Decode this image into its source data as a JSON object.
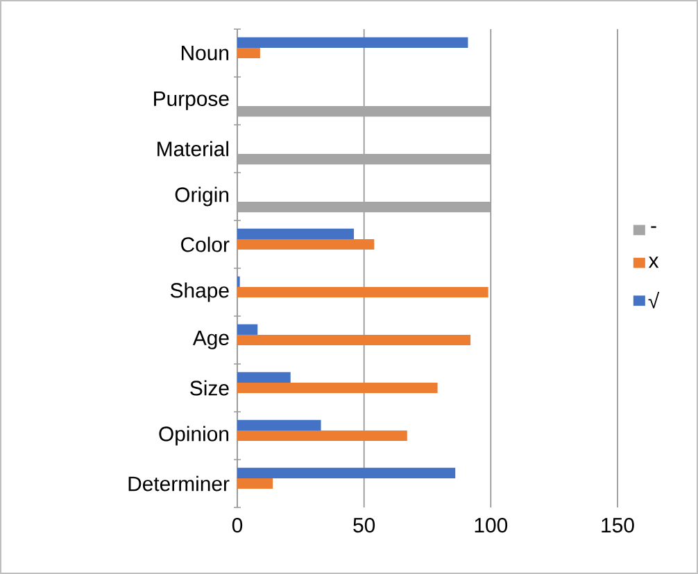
{
  "chart_data": {
    "type": "bar",
    "orientation": "horizontal",
    "categories": [
      "Noun",
      "Purpose",
      "Material",
      "Origin",
      "Color",
      "Shape",
      "Age",
      "Size",
      "Opinion",
      "Determiner"
    ],
    "series": [
      {
        "name": "√",
        "color": "#4472c4",
        "values": [
          91,
          null,
          null,
          null,
          46,
          1,
          8,
          21,
          33,
          86
        ]
      },
      {
        "name": "x",
        "color": "#ed7d31",
        "values": [
          9,
          null,
          null,
          null,
          54,
          99,
          92,
          79,
          67,
          14
        ]
      },
      {
        "name": "-",
        "color": "#a5a5a5",
        "values": [
          null,
          100,
          100,
          100,
          null,
          null,
          null,
          null,
          null,
          null
        ]
      }
    ],
    "xlim": [
      0,
      150
    ],
    "xticks": [
      0,
      50,
      100,
      150
    ],
    "grid": "x",
    "legend": "right"
  }
}
